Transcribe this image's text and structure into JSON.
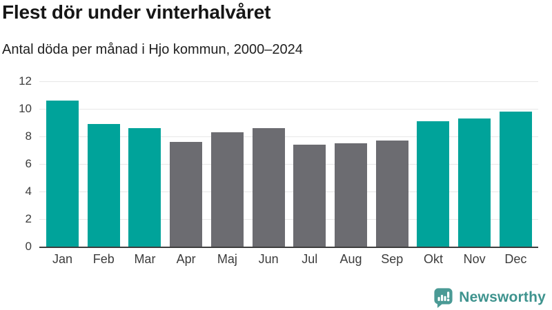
{
  "header": {
    "title": "Flest dör under vinterhalvåret",
    "subtitle": "Antal döda per månad i Hjo kommun, 2000–2024"
  },
  "chart_data": {
    "type": "bar",
    "title": "Flest dör under vinterhalvåret",
    "subtitle": "Antal döda per månad i Hjo kommun, 2000–2024",
    "categories": [
      "Jan",
      "Feb",
      "Mar",
      "Apr",
      "Maj",
      "Jun",
      "Jul",
      "Aug",
      "Sep",
      "Okt",
      "Nov",
      "Dec"
    ],
    "values": [
      10.6,
      8.9,
      8.6,
      7.6,
      8.3,
      8.6,
      7.4,
      7.5,
      7.7,
      9.1,
      9.3,
      9.8
    ],
    "groups": [
      "winter",
      "winter",
      "winter",
      "summer",
      "summer",
      "summer",
      "summer",
      "summer",
      "summer",
      "winter",
      "winter",
      "winter"
    ],
    "colors": {
      "winter": "#00a39a",
      "summer": "#6c6c71"
    },
    "xlabel": "",
    "ylabel": "",
    "ylim": [
      0,
      12
    ],
    "yticks": [
      0,
      2,
      4,
      6,
      8,
      10,
      12
    ],
    "grid": true,
    "legend_position": "none"
  },
  "footer": {
    "brand": "Newsworthy",
    "logo_icon": "newsworthy-speech-bubble-chart-icon",
    "brand_color": "#3e938e",
    "icon_color": "#4a9a95"
  }
}
